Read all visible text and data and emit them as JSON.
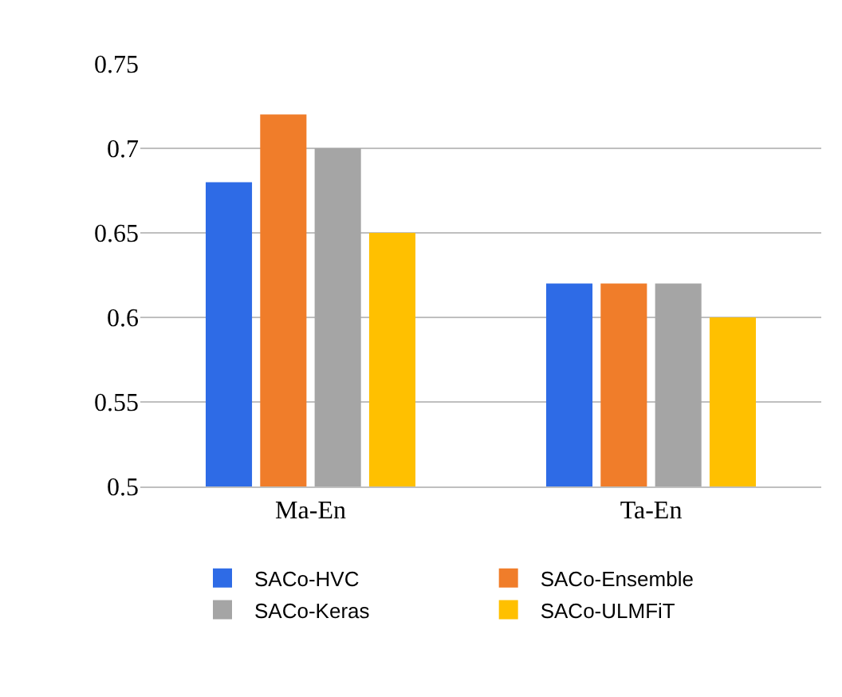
{
  "chart_data": {
    "type": "bar",
    "categories": [
      "Ma-En",
      "Ta-En"
    ],
    "series": [
      {
        "name": "SACo-HVC",
        "color": "#2e6be6",
        "values": [
          0.68,
          0.62
        ]
      },
      {
        "name": "SACo-Ensemble",
        "color": "#f07d2a",
        "values": [
          0.72,
          0.62
        ]
      },
      {
        "name": "SACo-Keras",
        "color": "#a5a5a5",
        "values": [
          0.7,
          0.62
        ]
      },
      {
        "name": "SACo-ULMFiT",
        "color": "#ffc000",
        "values": [
          0.65,
          0.6
        ]
      }
    ],
    "ylim": [
      0.5,
      0.75
    ],
    "yticks": [
      0.5,
      0.55,
      0.6,
      0.65,
      0.7,
      0.75
    ],
    "grid": "y",
    "legend": "bottom"
  }
}
